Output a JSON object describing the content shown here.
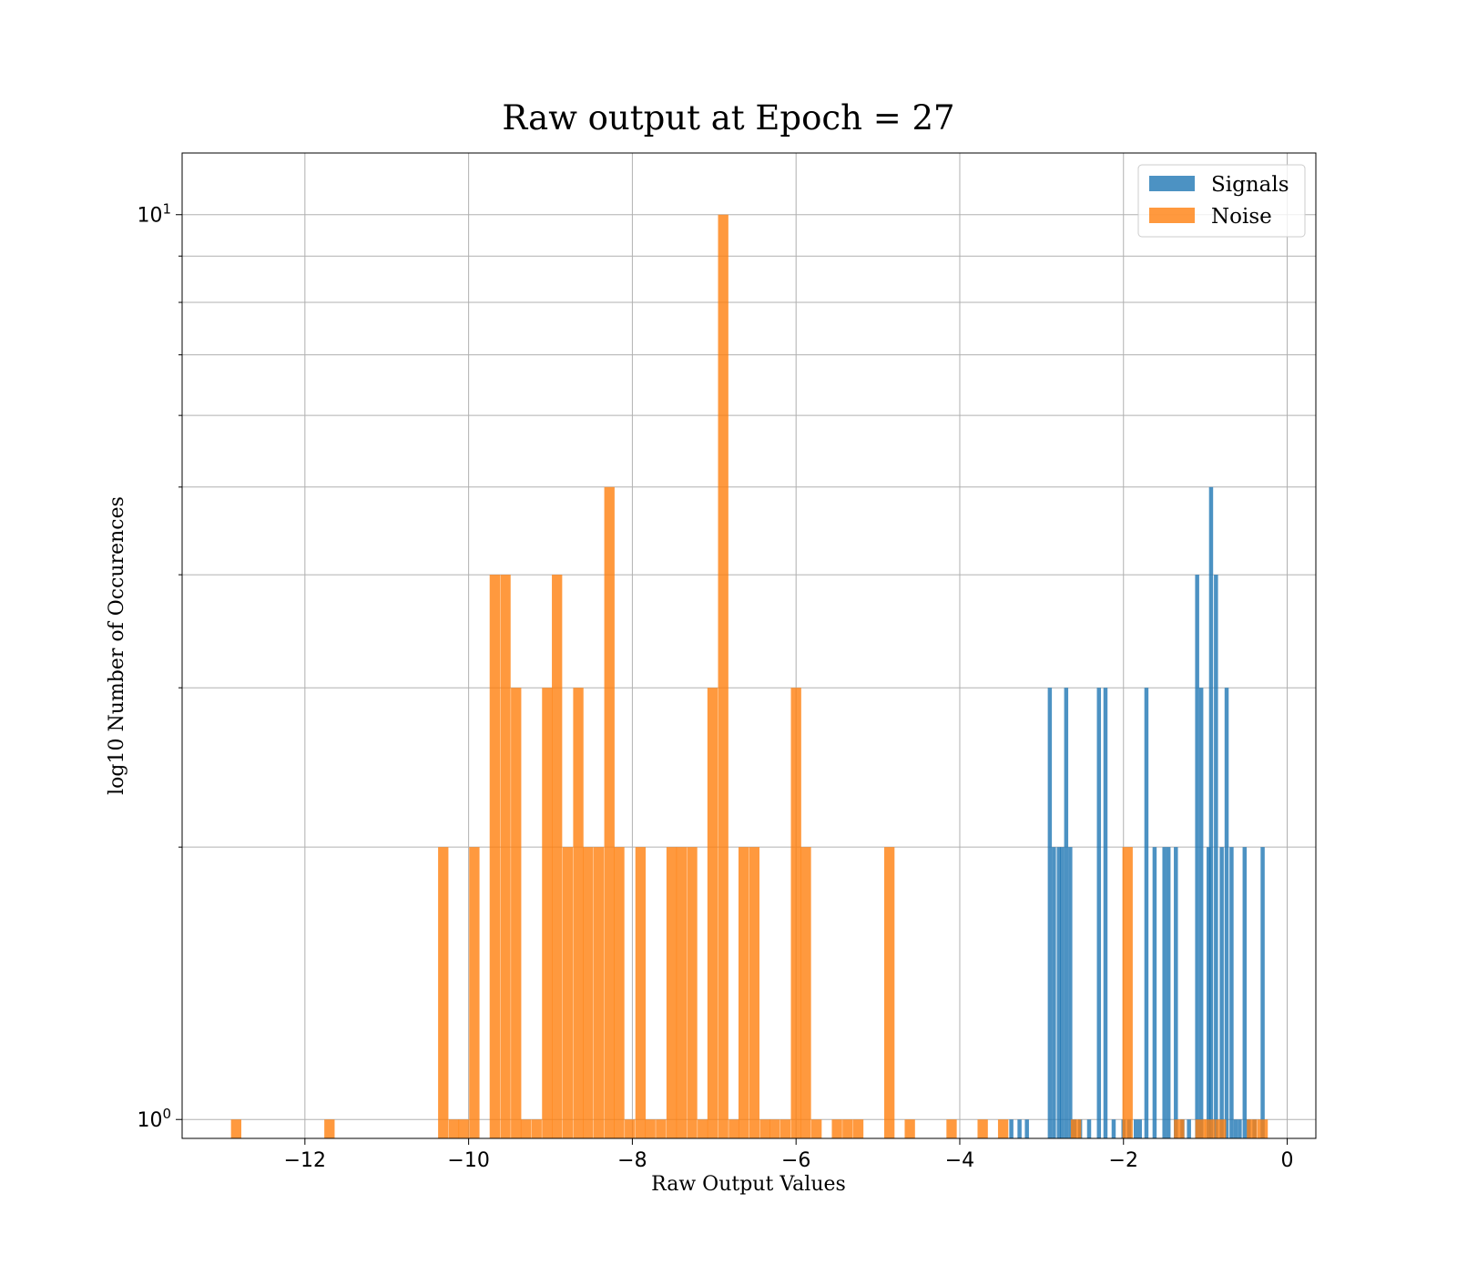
{
  "chart_data": {
    "type": "bar",
    "title": "Raw output at Epoch = 27",
    "xlabel": "Raw Output Values",
    "ylabel": "log10 Number of Occurences",
    "xlim": [
      -13.5,
      0.35
    ],
    "ylim": [
      0.953,
      11.7
    ],
    "yscale": "log",
    "grid": true,
    "legend_position": "top-right",
    "x_ticks": [
      {
        "value": -12,
        "label": "−12"
      },
      {
        "value": -10,
        "label": "−10"
      },
      {
        "value": -8,
        "label": "−8"
      },
      {
        "value": -6,
        "label": "−6"
      },
      {
        "value": -4,
        "label": "−4"
      },
      {
        "value": -2,
        "label": "−2"
      },
      {
        "value": 0,
        "label": "0"
      }
    ],
    "y_ticks": [
      {
        "value": 1,
        "base": "10",
        "exp": "0"
      },
      {
        "value": 10,
        "base": "10",
        "exp": "1"
      }
    ],
    "y_minor_ticks": [
      2,
      3,
      4,
      5,
      6,
      7,
      8,
      9
    ],
    "series": [
      {
        "name": "Signals",
        "color": "#1f77b4",
        "bin_width": 0.05,
        "bins": [
          [
            -3.37,
            1
          ],
          [
            -3.27,
            1
          ],
          [
            -3.18,
            1
          ],
          [
            -2.9,
            3
          ],
          [
            -2.85,
            2
          ],
          [
            -2.79,
            2
          ],
          [
            -2.75,
            2
          ],
          [
            -2.7,
            3
          ],
          [
            -2.65,
            2
          ],
          [
            -2.6,
            1
          ],
          [
            -2.53,
            1
          ],
          [
            -2.42,
            1
          ],
          [
            -2.3,
            3
          ],
          [
            -2.22,
            3
          ],
          [
            -2.12,
            1
          ],
          [
            -2.0,
            1
          ],
          [
            -1.93,
            1
          ],
          [
            -1.85,
            1
          ],
          [
            -1.8,
            1
          ],
          [
            -1.72,
            3
          ],
          [
            -1.62,
            2
          ],
          [
            -1.5,
            2
          ],
          [
            -1.45,
            2
          ],
          [
            -1.36,
            2
          ],
          [
            -1.28,
            1
          ],
          [
            -1.2,
            1
          ],
          [
            -1.1,
            4
          ],
          [
            -1.05,
            3
          ],
          [
            -0.96,
            2
          ],
          [
            -0.93,
            5
          ],
          [
            -0.87,
            4
          ],
          [
            -0.8,
            2
          ],
          [
            -0.74,
            3
          ],
          [
            -0.68,
            2
          ],
          [
            -0.63,
            1
          ],
          [
            -0.58,
            1
          ],
          [
            -0.52,
            2
          ],
          [
            -0.47,
            1
          ],
          [
            -0.4,
            1
          ],
          [
            -0.3,
            2
          ]
        ]
      },
      {
        "name": "Noise",
        "color": "#ff7f0e",
        "bin_width": 0.126,
        "bins": [
          [
            -12.84,
            1
          ],
          [
            -11.7,
            1
          ],
          [
            -10.31,
            2
          ],
          [
            -10.18,
            1
          ],
          [
            -10.06,
            1
          ],
          [
            -9.93,
            2
          ],
          [
            -9.68,
            4
          ],
          [
            -9.55,
            4
          ],
          [
            -9.42,
            3
          ],
          [
            -9.3,
            1
          ],
          [
            -9.17,
            1
          ],
          [
            -9.04,
            3
          ],
          [
            -8.92,
            4
          ],
          [
            -8.79,
            2
          ],
          [
            -8.66,
            3
          ],
          [
            -8.54,
            2
          ],
          [
            -8.41,
            2
          ],
          [
            -8.28,
            5
          ],
          [
            -8.16,
            2
          ],
          [
            -8.03,
            1
          ],
          [
            -7.9,
            2
          ],
          [
            -7.78,
            1
          ],
          [
            -7.65,
            1
          ],
          [
            -7.52,
            2
          ],
          [
            -7.4,
            2
          ],
          [
            -7.27,
            2
          ],
          [
            -7.14,
            1
          ],
          [
            -7.02,
            3
          ],
          [
            -6.89,
            10
          ],
          [
            -6.76,
            1
          ],
          [
            -6.64,
            2
          ],
          [
            -6.51,
            2
          ],
          [
            -6.38,
            1
          ],
          [
            -6.26,
            1
          ],
          [
            -6.13,
            1
          ],
          [
            -6.0,
            3
          ],
          [
            -5.88,
            2
          ],
          [
            -5.75,
            1
          ],
          [
            -5.5,
            1
          ],
          [
            -5.37,
            1
          ],
          [
            -5.24,
            1
          ],
          [
            -4.86,
            2
          ],
          [
            -4.61,
            1
          ],
          [
            -4.1,
            1
          ],
          [
            -3.72,
            1
          ],
          [
            -3.47,
            1
          ],
          [
            -2.58,
            1
          ],
          [
            -1.95,
            2
          ],
          [
            -1.32,
            1
          ],
          [
            -1.06,
            1
          ],
          [
            -0.94,
            1
          ],
          [
            -0.81,
            1
          ],
          [
            -0.43,
            1
          ],
          [
            -0.3,
            1
          ]
        ]
      }
    ]
  }
}
